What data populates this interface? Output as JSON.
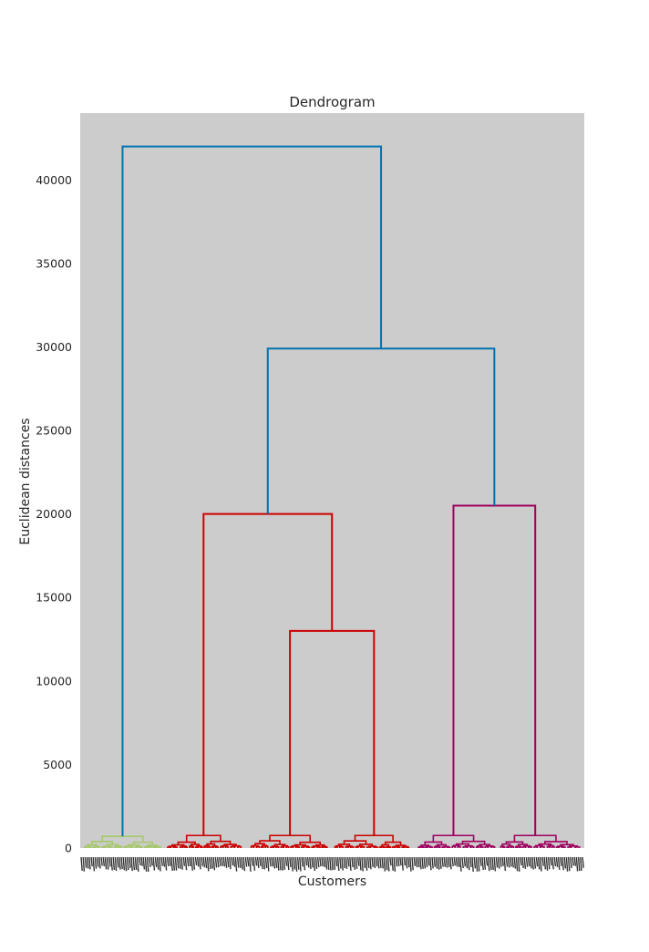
{
  "chart_data": {
    "type": "dendrogram",
    "title": "Dendrogram",
    "xlabel": "Customers",
    "ylabel": "Euclidean distances",
    "ylim": [
      0,
      44000
    ],
    "yticks": [
      0,
      5000,
      10000,
      15000,
      20000,
      25000,
      30000,
      35000,
      40000
    ],
    "grid": false,
    "background_color": "#cccccc",
    "cluster_colors": {
      "green": "#a6c96a",
      "red": "#cc0000",
      "magenta": "#a00060",
      "blue": "#0072b2"
    },
    "merges": [
      {
        "name": "merge-red-right",
        "height": 13000,
        "color": "red"
      },
      {
        "name": "merge-red",
        "height": 20000,
        "color": "red"
      },
      {
        "name": "merge-magenta",
        "height": 20500,
        "color": "magenta"
      },
      {
        "name": "merge-red-magenta",
        "height": 29900,
        "color": "blue"
      },
      {
        "name": "merge-root",
        "height": 42000,
        "color": "blue"
      }
    ],
    "leaf_clusters": [
      {
        "name": "green-cluster",
        "color": "green",
        "top_height": 700
      },
      {
        "name": "red-cluster-a",
        "color": "red",
        "top_height": 750
      },
      {
        "name": "red-cluster-b",
        "color": "red",
        "top_height": 750
      },
      {
        "name": "red-cluster-c",
        "color": "red",
        "top_height": 750
      },
      {
        "name": "magenta-cluster-a",
        "color": "magenta",
        "top_height": 750
      },
      {
        "name": "magenta-cluster-b",
        "color": "magenta",
        "top_height": 750
      }
    ]
  }
}
